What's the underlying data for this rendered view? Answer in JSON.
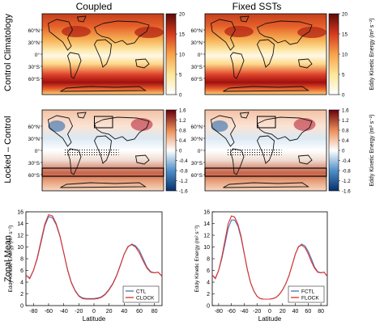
{
  "columns": [
    "Coupled",
    "Fixed SSTs"
  ],
  "rows": [
    "Control Climatology",
    "Locked – Control",
    "Zonal Mean"
  ],
  "map_lat_ticks": [
    "60°N",
    "30°N",
    "0°",
    "30°S",
    "60°S"
  ],
  "colorbar_label": "Eddy Kinetic Energy (m² s⁻²)",
  "colorbar_clim_ticks": [
    "20",
    "15",
    "10",
    "5",
    "0"
  ],
  "colorbar_diff_ticks": [
    "1.6",
    "1.2",
    "0.8",
    "0.4",
    "0",
    "-0.4",
    "-0.8",
    "-1.2",
    "-1.6"
  ],
  "colors": {
    "ctl": "#4b6fb5",
    "lock": "#e0302a"
  },
  "chart_data": [
    {
      "type": "line",
      "title": "",
      "xlabel": "Latitude",
      "ylabel": "Eddy Kinetic Energy (m² s⁻²)",
      "xlim": [
        -90,
        90
      ],
      "ylim": [
        0,
        16
      ],
      "xticks": [
        -80,
        -60,
        -40,
        -20,
        0,
        20,
        40,
        60,
        80
      ],
      "yticks": [
        0,
        2,
        4,
        6,
        8,
        10,
        12,
        14,
        16
      ],
      "legend_position": "bottom-right",
      "x": [
        -90,
        -85,
        -80,
        -75,
        -70,
        -65,
        -60,
        -55,
        -50,
        -45,
        -40,
        -35,
        -30,
        -25,
        -20,
        -15,
        -10,
        -5,
        0,
        5,
        10,
        15,
        20,
        25,
        30,
        35,
        40,
        45,
        50,
        55,
        60,
        65,
        70,
        75,
        80,
        85,
        90
      ],
      "series": [
        {
          "name": "CTL",
          "values": [
            5.2,
            4.7,
            6.0,
            8.0,
            10.8,
            13.6,
            15.2,
            15.0,
            13.8,
            11.8,
            9.0,
            6.2,
            4.0,
            2.6,
            1.7,
            1.3,
            1.2,
            1.2,
            1.2,
            1.3,
            1.5,
            2.0,
            2.8,
            3.8,
            5.2,
            7.0,
            8.8,
            10.0,
            10.5,
            10.2,
            9.4,
            8.0,
            6.6,
            5.8,
            5.6,
            5.7,
            5.0
          ]
        },
        {
          "name": "CLOCK",
          "values": [
            5.2,
            4.6,
            6.0,
            8.2,
            11.1,
            13.9,
            15.5,
            15.3,
            14.0,
            11.9,
            9.0,
            6.1,
            3.9,
            2.5,
            1.6,
            1.2,
            1.1,
            1.1,
            1.1,
            1.2,
            1.4,
            1.9,
            2.7,
            3.7,
            5.1,
            6.9,
            8.8,
            10.1,
            10.4,
            10.0,
            9.0,
            7.6,
            6.4,
            5.7,
            5.6,
            5.7,
            5.0
          ]
        }
      ]
    },
    {
      "type": "line",
      "title": "",
      "xlabel": "Latitude",
      "ylabel": "Eddy Kinetic Energy (m² s⁻²)",
      "xlim": [
        -90,
        90
      ],
      "ylim": [
        0,
        16
      ],
      "xticks": [
        -80,
        -60,
        -40,
        -20,
        0,
        20,
        40,
        60,
        80
      ],
      "yticks": [
        0,
        2,
        4,
        6,
        8,
        10,
        12,
        14,
        16
      ],
      "legend_position": "bottom-right",
      "x": [
        -90,
        -85,
        -80,
        -75,
        -70,
        -65,
        -60,
        -55,
        -50,
        -45,
        -40,
        -35,
        -30,
        -25,
        -20,
        -15,
        -10,
        -5,
        0,
        5,
        10,
        15,
        20,
        25,
        30,
        35,
        40,
        45,
        50,
        55,
        60,
        65,
        70,
        75,
        80,
        85,
        90
      ],
      "series": [
        {
          "name": "FCTL",
          "values": [
            5.2,
            4.7,
            6.0,
            8.0,
            10.6,
            13.2,
            14.6,
            14.6,
            13.6,
            11.6,
            8.9,
            6.1,
            3.9,
            2.5,
            1.6,
            1.2,
            1.1,
            1.1,
            1.1,
            1.2,
            1.4,
            1.9,
            2.7,
            3.7,
            5.1,
            6.9,
            8.8,
            10.0,
            10.5,
            10.2,
            9.3,
            8.0,
            6.6,
            5.8,
            5.6,
            5.7,
            5.0
          ]
        },
        {
          "name": "FLOCK",
          "values": [
            5.2,
            4.6,
            6.0,
            8.3,
            11.2,
            14.0,
            15.3,
            15.1,
            13.9,
            11.9,
            9.0,
            6.1,
            3.9,
            2.5,
            1.6,
            1.2,
            1.1,
            1.1,
            1.1,
            1.2,
            1.4,
            1.9,
            2.7,
            3.7,
            5.1,
            6.9,
            8.8,
            10.1,
            10.3,
            9.9,
            8.9,
            7.5,
            6.4,
            5.7,
            5.6,
            5.7,
            5.0
          ]
        }
      ]
    }
  ]
}
